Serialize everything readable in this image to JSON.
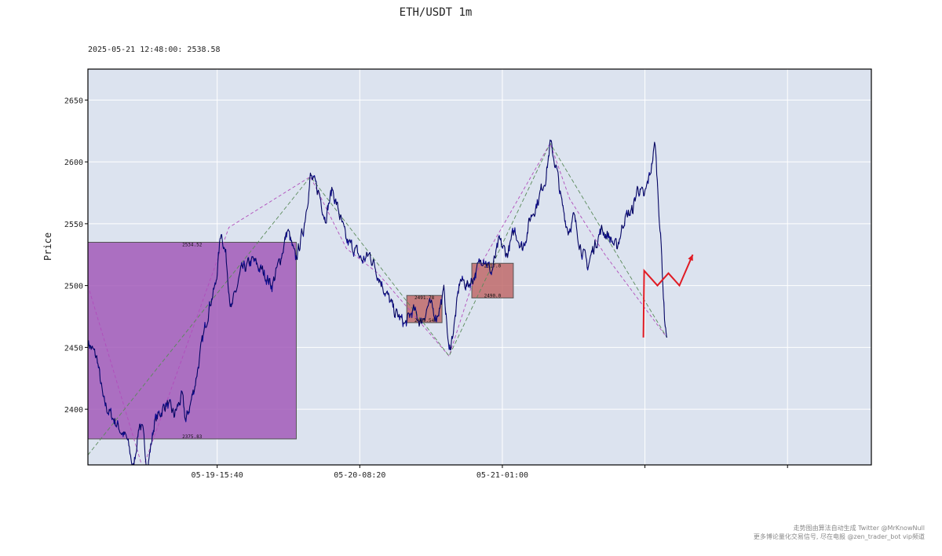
{
  "chart_data": {
    "type": "line",
    "title": "ETH/USDT 1m",
    "subtitle": "2025-05-21 12:48:00: 2538.58",
    "ylabel": "Price",
    "xlabel": "",
    "ylim": [
      2355,
      2675
    ],
    "xlim": [
      0,
      100
    ],
    "yticks": [
      2400,
      2450,
      2500,
      2550,
      2600,
      2650
    ],
    "xticks": [
      {
        "x": 16.5,
        "label": "05-19-15:40"
      },
      {
        "x": 34.7,
        "label": "05-20-08:20"
      },
      {
        "x": 52.9,
        "label": "05-21-01:00"
      },
      {
        "x": 71.1,
        "label": ""
      },
      {
        "x": 89.3,
        "label": ""
      }
    ],
    "grid": true,
    "background_color": "#dce3ef",
    "price_color": "#0a0a8c",
    "price_keypoints": [
      [
        0,
        2455
      ],
      [
        1.2,
        2440
      ],
      [
        2,
        2405
      ],
      [
        3,
        2395
      ],
      [
        4,
        2385
      ],
      [
        5,
        2375
      ],
      [
        5.8,
        2352
      ],
      [
        6.6,
        2390
      ],
      [
        7,
        2380
      ],
      [
        7.6,
        2352
      ],
      [
        8.5,
        2390
      ],
      [
        10,
        2405
      ],
      [
        11,
        2395
      ],
      [
        12,
        2410
      ],
      [
        12.5,
        2390
      ],
      [
        13.5,
        2415
      ],
      [
        14.5,
        2450
      ],
      [
        15.5,
        2485
      ],
      [
        16.3,
        2500
      ],
      [
        17,
        2545
      ],
      [
        17.6,
        2525
      ],
      [
        18.3,
        2480
      ],
      [
        19.5,
        2510
      ],
      [
        21,
        2520
      ],
      [
        22.5,
        2510
      ],
      [
        23.5,
        2500
      ],
      [
        24.5,
        2520
      ],
      [
        25.5,
        2545
      ],
      [
        26.5,
        2520
      ],
      [
        27.5,
        2545
      ],
      [
        28.4,
        2588
      ],
      [
        29.5,
        2575
      ],
      [
        30.3,
        2555
      ],
      [
        31.2,
        2578
      ],
      [
        32,
        2560
      ],
      [
        33,
        2535
      ],
      [
        34,
        2530
      ],
      [
        35,
        2520
      ],
      [
        36,
        2525
      ],
      [
        37,
        2510
      ],
      [
        38,
        2495
      ],
      [
        39,
        2480
      ],
      [
        40.5,
        2468
      ],
      [
        41.5,
        2480
      ],
      [
        42.5,
        2470
      ],
      [
        43.5,
        2485
      ],
      [
        44.5,
        2475
      ],
      [
        45.5,
        2495
      ],
      [
        46.1,
        2445
      ],
      [
        46.8,
        2470
      ],
      [
        47.5,
        2505
      ],
      [
        48.5,
        2500
      ],
      [
        49.5,
        2510
      ],
      [
        50.5,
        2525
      ],
      [
        51.5,
        2510
      ],
      [
        52.5,
        2535
      ],
      [
        53.5,
        2525
      ],
      [
        54.5,
        2545
      ],
      [
        55.5,
        2530
      ],
      [
        56.5,
        2555
      ],
      [
        57.5,
        2570
      ],
      [
        58.5,
        2590
      ],
      [
        59,
        2615
      ],
      [
        59.8,
        2595
      ],
      [
        60.5,
        2565
      ],
      [
        61.3,
        2545
      ],
      [
        62,
        2555
      ],
      [
        63,
        2530
      ],
      [
        63.8,
        2515
      ],
      [
        64.5,
        2530
      ],
      [
        65.5,
        2545
      ],
      [
        66.5,
        2540
      ],
      [
        67.5,
        2530
      ],
      [
        68.5,
        2555
      ],
      [
        69.5,
        2560
      ],
      [
        70.2,
        2580
      ],
      [
        71,
        2570
      ],
      [
        71.8,
        2592
      ],
      [
        72.4,
        2615
      ],
      [
        73.1,
        2540
      ],
      [
        73.6,
        2475
      ],
      [
        73.9,
        2458
      ]
    ],
    "zigzag_color": "#5a8a5a",
    "zigzag_points": [
      [
        0,
        2363
      ],
      [
        28.4,
        2588
      ],
      [
        46.1,
        2443
      ],
      [
        59,
        2615
      ],
      [
        73.9,
        2458
      ]
    ],
    "zigzag_minor_color": "#b04dbb",
    "zigzag_minor_points": [
      [
        0,
        2500
      ],
      [
        7,
        2352
      ],
      [
        18,
        2547
      ],
      [
        28.4,
        2588
      ],
      [
        33,
        2530
      ],
      [
        37,
        2510
      ],
      [
        46.1,
        2443
      ],
      [
        49.5,
        2510
      ],
      [
        59,
        2615
      ],
      [
        61.5,
        2570
      ],
      [
        66,
        2525
      ],
      [
        73.9,
        2458
      ]
    ],
    "zones": [
      {
        "x0": 0,
        "x1": 26.6,
        "y0": 2376,
        "y1": 2535,
        "fill": "#a25ab8",
        "top_label": "2534.52",
        "bottom_label": "2375.83"
      },
      {
        "x0": 40.7,
        "x1": 45.2,
        "y0": 2470,
        "y1": 2492,
        "fill": "#c06a6a",
        "top_label": "2491.78",
        "bottom_label": "2469.54"
      },
      {
        "x0": 49,
        "x1": 54.3,
        "y0": 2490,
        "y1": 2518,
        "fill": "#c06a6a",
        "top_label": "2517.0",
        "bottom_label": "2490.0"
      }
    ],
    "forecast_color": "#e01b24",
    "forecast_points": [
      [
        70.9,
        2458
      ],
      [
        71,
        2512
      ],
      [
        72.7,
        2500
      ],
      [
        74.1,
        2510
      ],
      [
        75.5,
        2500
      ],
      [
        77.2,
        2525
      ]
    ]
  },
  "footer": {
    "line1": "走势图由算法自动生成  Twitter @MrKnowNull",
    "line2": "更多博论量化交易信号, 尽在电报 @zen_trader_bot vip频道"
  }
}
